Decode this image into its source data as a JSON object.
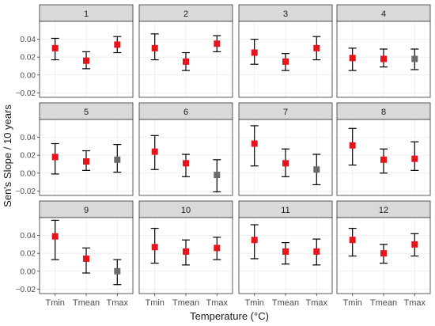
{
  "chart_data": {
    "type": "scatter",
    "subtype": "point-with-errorbars, faceted",
    "xlabel": "Temperature (°C)",
    "ylabel": "Sen's Slope / 10 years",
    "categories": [
      "Tmin",
      "Tmean",
      "Tmax"
    ],
    "ylim": [
      -0.025,
      0.06
    ],
    "yticks": [
      -0.02,
      0.0,
      0.02,
      0.04
    ],
    "ytick_labels": [
      "−0.02",
      "0.00",
      "0.02",
      "0.04"
    ],
    "grid": true,
    "legend": "none",
    "colors": {
      "significant": "#e8141c",
      "not_significant": "#6b6b6b",
      "strip": "#d9d9d9",
      "panel_border": "#333333",
      "grid": "#ebebeb"
    },
    "panels": [
      {
        "label": "1",
        "points": [
          {
            "x": "Tmin",
            "y": 0.03,
            "low": 0.017,
            "high": 0.041,
            "significant": true
          },
          {
            "x": "Tmean",
            "y": 0.016,
            "low": 0.007,
            "high": 0.026,
            "significant": true
          },
          {
            "x": "Tmax",
            "y": 0.034,
            "low": 0.025,
            "high": 0.043,
            "significant": true
          }
        ]
      },
      {
        "label": "2",
        "points": [
          {
            "x": "Tmin",
            "y": 0.03,
            "low": 0.017,
            "high": 0.046,
            "significant": true
          },
          {
            "x": "Tmean",
            "y": 0.015,
            "low": 0.005,
            "high": 0.025,
            "significant": true
          },
          {
            "x": "Tmax",
            "y": 0.035,
            "low": 0.026,
            "high": 0.044,
            "significant": true
          }
        ]
      },
      {
        "label": "3",
        "points": [
          {
            "x": "Tmin",
            "y": 0.025,
            "low": 0.012,
            "high": 0.04,
            "significant": true
          },
          {
            "x": "Tmean",
            "y": 0.015,
            "low": 0.005,
            "high": 0.024,
            "significant": true
          },
          {
            "x": "Tmax",
            "y": 0.03,
            "low": 0.017,
            "high": 0.043,
            "significant": true
          }
        ]
      },
      {
        "label": "4",
        "points": [
          {
            "x": "Tmin",
            "y": 0.019,
            "low": 0.005,
            "high": 0.03,
            "significant": true
          },
          {
            "x": "Tmean",
            "y": 0.018,
            "low": 0.009,
            "high": 0.029,
            "significant": true
          },
          {
            "x": "Tmax",
            "y": 0.018,
            "low": 0.006,
            "high": 0.029,
            "significant": false
          }
        ]
      },
      {
        "label": "5",
        "points": [
          {
            "x": "Tmin",
            "y": 0.018,
            "low": -0.001,
            "high": 0.033,
            "significant": true
          },
          {
            "x": "Tmean",
            "y": 0.013,
            "low": 0.003,
            "high": 0.025,
            "significant": true
          },
          {
            "x": "Tmax",
            "y": 0.015,
            "low": 0.001,
            "high": 0.032,
            "significant": false
          }
        ]
      },
      {
        "label": "6",
        "points": [
          {
            "x": "Tmin",
            "y": 0.024,
            "low": 0.004,
            "high": 0.042,
            "significant": true
          },
          {
            "x": "Tmean",
            "y": 0.011,
            "low": -0.004,
            "high": 0.021,
            "significant": true
          },
          {
            "x": "Tmax",
            "y": -0.002,
            "low": -0.021,
            "high": 0.015,
            "significant": false
          }
        ]
      },
      {
        "label": "7",
        "points": [
          {
            "x": "Tmin",
            "y": 0.033,
            "low": 0.008,
            "high": 0.053,
            "significant": true
          },
          {
            "x": "Tmean",
            "y": 0.011,
            "low": -0.004,
            "high": 0.027,
            "significant": true
          },
          {
            "x": "Tmax",
            "y": 0.004,
            "low": -0.013,
            "high": 0.021,
            "significant": false
          }
        ]
      },
      {
        "label": "8",
        "points": [
          {
            "x": "Tmin",
            "y": 0.031,
            "low": 0.009,
            "high": 0.05,
            "significant": true
          },
          {
            "x": "Tmean",
            "y": 0.015,
            "low": 0.0,
            "high": 0.027,
            "significant": true
          },
          {
            "x": "Tmax",
            "y": 0.016,
            "low": 0.003,
            "high": 0.035,
            "significant": true
          }
        ]
      },
      {
        "label": "9",
        "points": [
          {
            "x": "Tmin",
            "y": 0.039,
            "low": 0.013,
            "high": 0.057,
            "significant": true
          },
          {
            "x": "Tmean",
            "y": 0.014,
            "low": -0.002,
            "high": 0.026,
            "significant": true
          },
          {
            "x": "Tmax",
            "y": 0.0,
            "low": -0.015,
            "high": 0.013,
            "significant": false
          }
        ]
      },
      {
        "label": "10",
        "points": [
          {
            "x": "Tmin",
            "y": 0.027,
            "low": 0.009,
            "high": 0.048,
            "significant": true
          },
          {
            "x": "Tmean",
            "y": 0.022,
            "low": 0.007,
            "high": 0.035,
            "significant": true
          },
          {
            "x": "Tmax",
            "y": 0.026,
            "low": 0.013,
            "high": 0.038,
            "significant": true
          }
        ]
      },
      {
        "label": "11",
        "points": [
          {
            "x": "Tmin",
            "y": 0.035,
            "low": 0.014,
            "high": 0.052,
            "significant": true
          },
          {
            "x": "Tmean",
            "y": 0.022,
            "low": 0.008,
            "high": 0.032,
            "significant": true
          },
          {
            "x": "Tmax",
            "y": 0.022,
            "low": 0.007,
            "high": 0.036,
            "significant": true
          }
        ]
      },
      {
        "label": "12",
        "points": [
          {
            "x": "Tmin",
            "y": 0.035,
            "low": 0.017,
            "high": 0.048,
            "significant": true
          },
          {
            "x": "Tmean",
            "y": 0.02,
            "low": 0.009,
            "high": 0.03,
            "significant": true
          },
          {
            "x": "Tmax",
            "y": 0.03,
            "low": 0.017,
            "high": 0.042,
            "significant": true
          }
        ]
      }
    ]
  }
}
